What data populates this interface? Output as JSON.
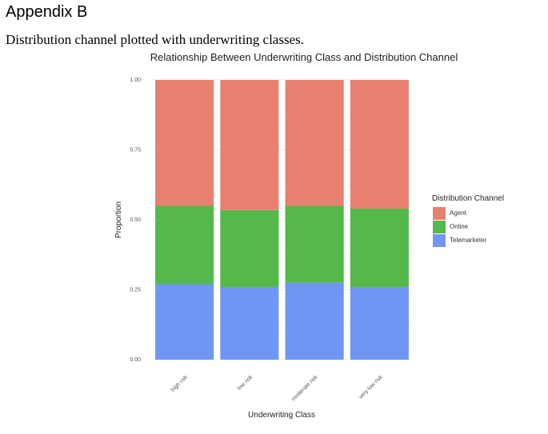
{
  "page": {
    "heading": "Appendix B",
    "caption": "Distribution channel plotted with underwriting classes."
  },
  "chart_data": {
    "type": "bar",
    "stacked": true,
    "title": "Relationship Between Underwriting Class and Distribution Channel",
    "xlabel": "Underwriting Class",
    "ylabel": "Proportion",
    "ylim": [
      0,
      1
    ],
    "yticks": [
      "0.00",
      "0.25",
      "0.50",
      "0.75",
      "1.00"
    ],
    "categories": [
      "high risk",
      "low risk",
      "moderate risk",
      "very low risk"
    ],
    "series": [
      {
        "name": "Telemarketer",
        "color": "#6f96f5",
        "values": [
          0.27,
          0.26,
          0.275,
          0.26
        ]
      },
      {
        "name": "Online",
        "color": "#55b84a",
        "values": [
          0.28,
          0.275,
          0.275,
          0.28
        ]
      },
      {
        "name": "Agent",
        "color": "#e88072",
        "values": [
          0.45,
          0.465,
          0.45,
          0.46
        ]
      }
    ],
    "legend": {
      "title": "Distribution Channel",
      "position": "right",
      "items": [
        "Agent",
        "Online",
        "Telemarketer"
      ]
    },
    "grid": true
  }
}
